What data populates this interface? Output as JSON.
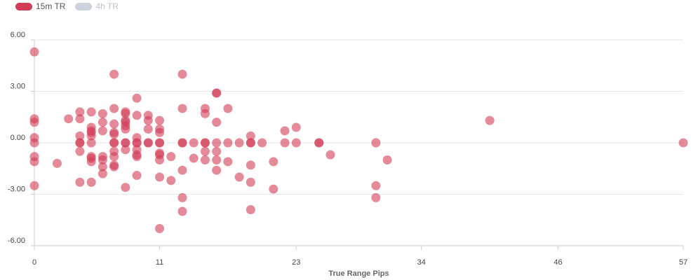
{
  "legend": {
    "items": [
      {
        "label": "15m TR",
        "color": "#d23c55",
        "hidden": false
      },
      {
        "label": "4h TR",
        "color": "#ccd3dc",
        "hidden": true
      }
    ]
  },
  "chart_data": {
    "type": "scatter",
    "xlabel": "True Range Pips",
    "ylabel": "",
    "xlim": [
      0,
      57
    ],
    "ylim": [
      -6,
      6
    ],
    "x_ticks": [
      "0",
      "11",
      "23",
      "34",
      "46",
      "57"
    ],
    "y_ticks": [
      "6.00",
      "3.00",
      "0.00",
      "-3.00",
      "-6.00"
    ],
    "grid": "horizontal",
    "legend_position": "top-left",
    "series": [
      {
        "name": "15m TR",
        "color": "#d23c55",
        "points": [
          [
            0,
            5.3
          ],
          [
            0,
            1.4
          ],
          [
            0,
            1.2
          ],
          [
            0,
            0.3
          ],
          [
            0,
            0
          ],
          [
            0,
            -0.8
          ],
          [
            0,
            -1.1
          ],
          [
            0,
            -2.5
          ],
          [
            2,
            -1.2
          ],
          [
            3,
            1.4
          ],
          [
            4,
            1.8
          ],
          [
            4,
            1.4
          ],
          [
            4,
            0.4
          ],
          [
            4,
            0
          ],
          [
            4,
            0
          ],
          [
            4,
            -0.5
          ],
          [
            4,
            -2.3
          ],
          [
            5,
            1.8
          ],
          [
            5,
            0.9
          ],
          [
            5,
            0.7
          ],
          [
            5,
            0.6
          ],
          [
            5,
            0.4
          ],
          [
            5,
            0
          ],
          [
            5,
            -0.8
          ],
          [
            5,
            -0.9
          ],
          [
            5,
            -1.1
          ],
          [
            5,
            -2.3
          ],
          [
            6,
            1.7
          ],
          [
            6,
            1.2
          ],
          [
            6,
            0.7
          ],
          [
            6,
            -0.8
          ],
          [
            6,
            -1.0
          ],
          [
            6,
            -1.4
          ],
          [
            6,
            -1.8
          ],
          [
            7,
            4.0
          ],
          [
            7,
            2.0
          ],
          [
            7,
            1.1
          ],
          [
            7,
            0.6
          ],
          [
            7,
            0.5
          ],
          [
            7,
            0
          ],
          [
            7,
            0
          ],
          [
            7,
            -0.5
          ],
          [
            7,
            -0.8
          ],
          [
            7,
            -1.3
          ],
          [
            7,
            -1.4
          ],
          [
            8,
            1.8
          ],
          [
            8,
            1.7
          ],
          [
            8,
            1.3
          ],
          [
            8,
            1.2
          ],
          [
            8,
            1.0
          ],
          [
            8,
            0.8
          ],
          [
            8,
            0
          ],
          [
            8,
            0
          ],
          [
            8,
            -0.4
          ],
          [
            8,
            -2.6
          ],
          [
            9,
            2.6
          ],
          [
            9,
            1.6
          ],
          [
            9,
            0.3
          ],
          [
            9,
            0
          ],
          [
            9,
            0
          ],
          [
            9,
            -0.4
          ],
          [
            9,
            -0.7
          ],
          [
            9,
            -0.8
          ],
          [
            9,
            -1.9
          ],
          [
            10,
            1.6
          ],
          [
            10,
            1.3
          ],
          [
            10,
            0.8
          ],
          [
            10,
            0
          ],
          [
            10,
            0
          ],
          [
            11,
            1.3
          ],
          [
            11,
            0.8
          ],
          [
            11,
            0.6
          ],
          [
            11,
            0
          ],
          [
            11,
            0
          ],
          [
            11,
            -0.6
          ],
          [
            11,
            -0.7
          ],
          [
            11,
            -1.0
          ],
          [
            11,
            -2.0
          ],
          [
            11,
            -5.0
          ],
          [
            12,
            -0.8
          ],
          [
            12,
            -2.2
          ],
          [
            13,
            4.0
          ],
          [
            13,
            2.0
          ],
          [
            13,
            0
          ],
          [
            13,
            0
          ],
          [
            13,
            -1.6
          ],
          [
            13,
            -3.2
          ],
          [
            13,
            -4.0
          ],
          [
            14,
            0
          ],
          [
            14,
            -0.9
          ],
          [
            15,
            2.0
          ],
          [
            15,
            1.7
          ],
          [
            15,
            0
          ],
          [
            15,
            0
          ],
          [
            15,
            -0.5
          ],
          [
            15,
            -1.0
          ],
          [
            16,
            2.9
          ],
          [
            16,
            2.9
          ],
          [
            16,
            1.2
          ],
          [
            16,
            0
          ],
          [
            16,
            -0.5
          ],
          [
            16,
            -1.0
          ],
          [
            16,
            -1.6
          ],
          [
            17,
            2.0
          ],
          [
            17,
            0
          ],
          [
            17,
            -1.1
          ],
          [
            18,
            0
          ],
          [
            18,
            -2.0
          ],
          [
            19,
            0.4
          ],
          [
            19,
            0
          ],
          [
            19,
            0
          ],
          [
            19,
            -1.3
          ],
          [
            19,
            -2.3
          ],
          [
            19,
            -3.9
          ],
          [
            20,
            0
          ],
          [
            21,
            -1.1
          ],
          [
            21,
            -2.7
          ],
          [
            22,
            0.7
          ],
          [
            22,
            0
          ],
          [
            23,
            0.9
          ],
          [
            23,
            0
          ],
          [
            25,
            0
          ],
          [
            25,
            0
          ],
          [
            26,
            -0.7
          ],
          [
            30,
            0
          ],
          [
            30,
            -2.5
          ],
          [
            30,
            -3.2
          ],
          [
            31,
            -1.0
          ],
          [
            40,
            1.3
          ],
          [
            57,
            0
          ]
        ]
      },
      {
        "name": "4h TR",
        "color": "#ccd3dc",
        "points": []
      }
    ]
  }
}
